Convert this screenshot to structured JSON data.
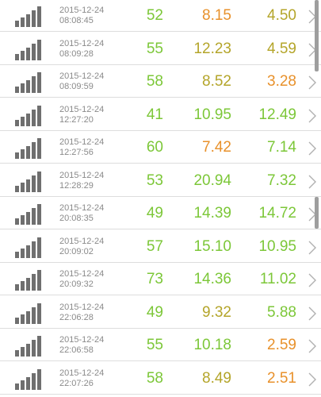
{
  "colors": {
    "green": "#7cc738",
    "olive": "#b4a52a",
    "orange": "#e8912b",
    "date_text": "#8a8a8a",
    "icon": "#6f6f6f",
    "divider": "#dddddd",
    "chevron": "#b0b0b0"
  },
  "icons": {
    "signal": "signal-strength-icon",
    "chevron": "chevron-right-icon"
  },
  "rows": [
    {
      "date": "2015-12-24",
      "time": "08:08:45",
      "ping": "52",
      "download": "8.15",
      "upload": "4.50",
      "ping_color": "green",
      "download_color": "orange",
      "upload_color": "olive"
    },
    {
      "date": "2015-12-24",
      "time": "08:09:28",
      "ping": "55",
      "download": "12.23",
      "upload": "4.59",
      "ping_color": "green",
      "download_color": "olive",
      "upload_color": "olive"
    },
    {
      "date": "2015-12-24",
      "time": "08:09:59",
      "ping": "58",
      "download": "8.52",
      "upload": "3.28",
      "ping_color": "green",
      "download_color": "olive",
      "upload_color": "orange"
    },
    {
      "date": "2015-12-24",
      "time": "12:27:20",
      "ping": "41",
      "download": "10.95",
      "upload": "12.49",
      "ping_color": "green",
      "download_color": "green",
      "upload_color": "green"
    },
    {
      "date": "2015-12-24",
      "time": "12:27:56",
      "ping": "60",
      "download": "7.42",
      "upload": "7.14",
      "ping_color": "green",
      "download_color": "orange",
      "upload_color": "green"
    },
    {
      "date": "2015-12-24",
      "time": "12:28:29",
      "ping": "53",
      "download": "20.94",
      "upload": "7.32",
      "ping_color": "green",
      "download_color": "green",
      "upload_color": "green"
    },
    {
      "date": "2015-12-24",
      "time": "20:08:35",
      "ping": "49",
      "download": "14.39",
      "upload": "14.72",
      "ping_color": "green",
      "download_color": "green",
      "upload_color": "green"
    },
    {
      "date": "2015-12-24",
      "time": "20:09:02",
      "ping": "57",
      "download": "15.10",
      "upload": "10.95",
      "ping_color": "green",
      "download_color": "green",
      "upload_color": "green"
    },
    {
      "date": "2015-12-24",
      "time": "20:09:32",
      "ping": "73",
      "download": "14.36",
      "upload": "11.02",
      "ping_color": "green",
      "download_color": "green",
      "upload_color": "green"
    },
    {
      "date": "2015-12-24",
      "time": "22:06:28",
      "ping": "49",
      "download": "9.32",
      "upload": "5.88",
      "ping_color": "green",
      "download_color": "olive",
      "upload_color": "green"
    },
    {
      "date": "2015-12-24",
      "time": "22:06:58",
      "ping": "55",
      "download": "10.18",
      "upload": "2.59",
      "ping_color": "green",
      "download_color": "green",
      "upload_color": "orange"
    },
    {
      "date": "2015-12-24",
      "time": "22:07:26",
      "ping": "58",
      "download": "8.49",
      "upload": "2.51",
      "ping_color": "green",
      "download_color": "olive",
      "upload_color": "orange"
    }
  ]
}
